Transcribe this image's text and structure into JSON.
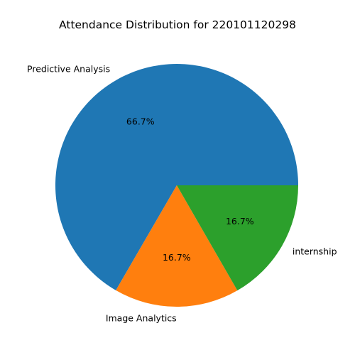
{
  "chart_data": {
    "type": "pie",
    "title": "Attendance Distribution for 220101120298",
    "labels": [
      "Predictive Analysis",
      "Image Analytics",
      "internship"
    ],
    "values": [
      66.7,
      16.7,
      16.7
    ],
    "percent_labels": [
      "66.7%",
      "16.7%",
      "16.7%"
    ],
    "colors": [
      "#1f77b4",
      "#ff7f0e",
      "#2ca02c"
    ]
  }
}
